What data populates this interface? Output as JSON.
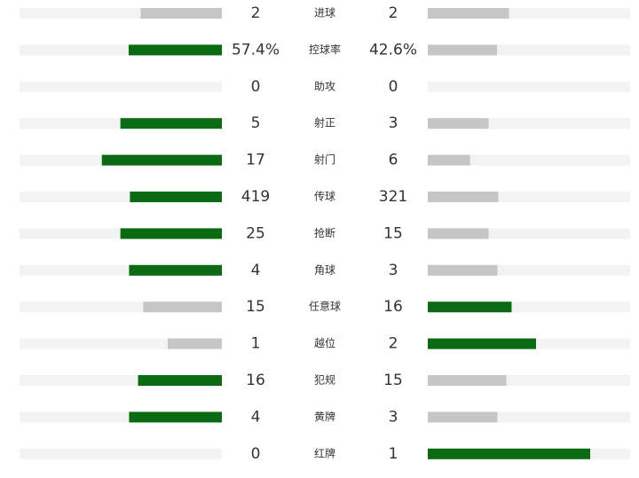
{
  "rows": [
    {
      "label": "进球",
      "home": 2,
      "away": 2
    },
    {
      "label": "控球率",
      "home": {
        "value": 57.4,
        "label": "57.4%"
      },
      "away": {
        "value": 42.6,
        "label": "42.6%"
      }
    },
    {
      "label": "助攻",
      "home": 0,
      "away": 0
    },
    {
      "label": "射正",
      "home": 5,
      "away": 3
    },
    {
      "label": "射门",
      "home": 17,
      "away": 6
    },
    {
      "label": "传球",
      "home": 419,
      "away": 321
    },
    {
      "label": "抢断",
      "home": 25,
      "away": 15
    },
    {
      "label": "角球",
      "home": 4,
      "away": 3
    },
    {
      "label": "任意球",
      "home": 15,
      "away": 16
    },
    {
      "label": "越位",
      "home": 1,
      "away": 2
    },
    {
      "label": "犯规",
      "home": 16,
      "away": 15
    },
    {
      "label": "黄牌",
      "home": 4,
      "away": 3
    },
    {
      "label": "红牌",
      "home": 0,
      "away": 1
    }
  ],
  "colors": {
    "leading": "#0b6b12",
    "trailing": "#c6c6c6",
    "track": "#f3f3f3"
  }
}
